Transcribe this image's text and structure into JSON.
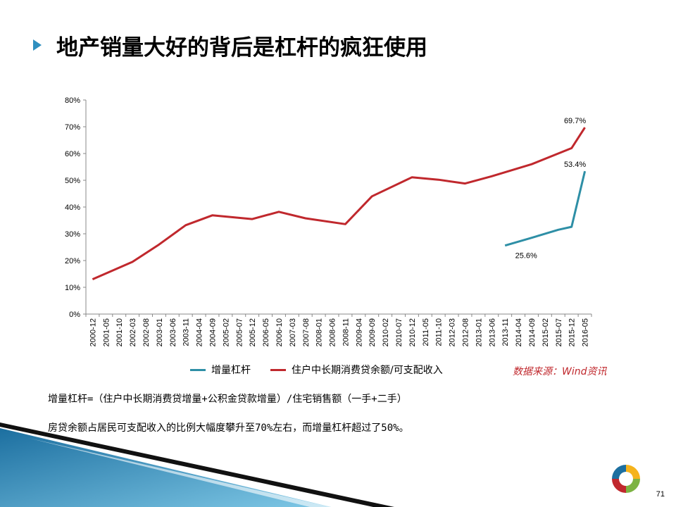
{
  "page": {
    "title": "地产销量大好的背后是杠杆的疯狂使用",
    "source": "数据来源：Wind资讯",
    "note1": "增量杠杆=（住户中长期消费贷增量+公积金贷款增量）/住宅销售额（一手+二手）",
    "note2": "房贷余额占居民可支配收入的比例大幅度攀升至70%左右，而增量杠杆超过了50%。",
    "page_number": "71",
    "colors": {
      "accent": "#2f8fbf",
      "series_lever": "#2e8fa6",
      "series_ratio": "#c0282d"
    }
  },
  "chart_data": {
    "type": "line",
    "x": [
      "2000-12",
      "2001-05",
      "2001-10",
      "2002-03",
      "2002-08",
      "2003-01",
      "2003-06",
      "2003-11",
      "2004-04",
      "2004-09",
      "2005-02",
      "2005-07",
      "2005-12",
      "2006-05",
      "2006-10",
      "2007-03",
      "2007-08",
      "2008-01",
      "2008-06",
      "2008-11",
      "2009-04",
      "2009-09",
      "2010-02",
      "2010-07",
      "2010-12",
      "2011-05",
      "2011-10",
      "2012-03",
      "2012-08",
      "2013-01",
      "2013-06",
      "2013-11",
      "2014-04",
      "2014-09",
      "2015-02",
      "2015-07",
      "2015-12",
      "2016-05"
    ],
    "ylim": [
      0,
      80
    ],
    "yticks": [
      "0%",
      "10%",
      "20%",
      "30%",
      "40%",
      "50%",
      "60%",
      "70%",
      "80%"
    ],
    "legend_position": "bottom",
    "series": [
      {
        "name": "增量杠杆",
        "color": "#2e8fa6",
        "points": [
          [
            "2013-11",
            25.6
          ],
          [
            "2014-09",
            28.5
          ],
          [
            "2015-07",
            31.5
          ],
          [
            "2015-12",
            32.6
          ],
          [
            "2016-05",
            53.4
          ]
        ],
        "labels": [
          {
            "x": "2013-11",
            "value": 25.6,
            "text": "25.6%"
          },
          {
            "x": "2016-05",
            "value": 53.4,
            "text": "53.4%"
          }
        ]
      },
      {
        "name": "住户中长期消费贷余额/可支配收入",
        "color": "#c0282d",
        "points": [
          [
            "2000-12",
            13.0
          ],
          [
            "2002-03",
            19.5
          ],
          [
            "2003-01",
            26.0
          ],
          [
            "2003-11",
            33.2
          ],
          [
            "2004-09",
            36.9
          ],
          [
            "2005-12",
            35.5
          ],
          [
            "2006-10",
            38.2
          ],
          [
            "2007-08",
            35.8
          ],
          [
            "2008-11",
            33.6
          ],
          [
            "2009-09",
            44.0
          ],
          [
            "2010-12",
            51.1
          ],
          [
            "2011-10",
            50.2
          ],
          [
            "2012-08",
            48.8
          ],
          [
            "2013-06",
            51.5
          ],
          [
            "2014-09",
            56.0
          ],
          [
            "2015-12",
            62.0
          ],
          [
            "2016-05",
            69.7
          ]
        ],
        "labels": [
          {
            "x": "2016-05",
            "value": 69.7,
            "text": "69.7%"
          }
        ]
      }
    ]
  }
}
